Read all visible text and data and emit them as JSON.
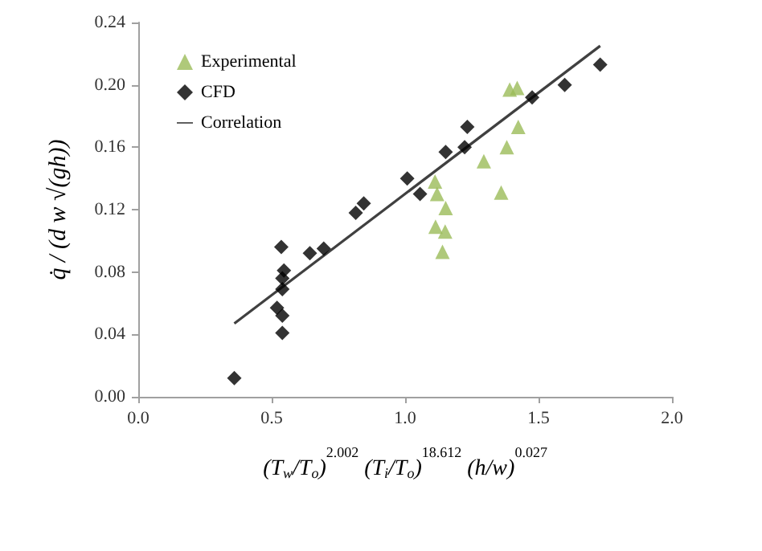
{
  "chart_data": {
    "type": "scatter",
    "xlabel": "(T$_{w}$/T$_{o}$)$^{2.002}$ (T$_{i}$/T$_{o}$)$^{18.612}$ (h/w)$^{0.027}$",
    "ylabel": "q̇ / (d w √(gh))",
    "xlim": [
      0,
      2
    ],
    "xticks": [
      {
        "value": 0,
        "label": "0.0"
      },
      {
        "value": 0.5,
        "label": "0.5"
      },
      {
        "value": 1,
        "label": "1.0"
      },
      {
        "value": 1.5,
        "label": "1.5"
      },
      {
        "value": 2,
        "label": "2.0"
      }
    ],
    "ylim": [
      0,
      0.24
    ],
    "yticks": [
      {
        "value": 0,
        "label": "0.00"
      },
      {
        "value": 0.04,
        "label": "0.04"
      },
      {
        "value": 0.08,
        "label": "0.08"
      },
      {
        "value": 0.12,
        "label": "0.12"
      },
      {
        "value": 0.16,
        "label": "0.16"
      },
      {
        "value": 0.2,
        "label": "0.20"
      },
      {
        "value": 0.24,
        "label": "0.24"
      }
    ],
    "grid": false,
    "legend": "top left",
    "series": [
      {
        "name": "Experimental",
        "marker": "triangle",
        "color": "#9bbb59",
        "x": [
          1.112,
          1.12,
          1.152,
          1.114,
          1.15,
          1.14,
          1.295,
          1.36,
          1.381,
          1.392,
          1.42,
          1.424
        ],
        "values": [
          0.138,
          0.13,
          0.121,
          0.109,
          0.106,
          0.093,
          0.151,
          0.131,
          0.16,
          0.197,
          0.198,
          0.173
        ]
      },
      {
        "name": "CFD",
        "marker": "diamond",
        "color": "#000000",
        "x": [
          0.36,
          0.536,
          0.546,
          0.54,
          0.54,
          0.52,
          0.54,
          0.54,
          0.643,
          0.695,
          0.815,
          0.845,
          1.008,
          1.056,
          1.152,
          1.223,
          1.233,
          1.476,
          1.598,
          1.731
        ],
        "values": [
          0.012,
          0.096,
          0.081,
          0.076,
          0.069,
          0.057,
          0.052,
          0.041,
          0.092,
          0.095,
          0.118,
          0.124,
          0.14,
          0.13,
          0.157,
          0.16,
          0.173,
          0.192,
          0.2,
          0.213
        ]
      },
      {
        "name": "Correlation",
        "type": "line",
        "marker": "none",
        "line_style": "solid",
        "color": "#404040",
        "x": [
          0.36,
          1.731
        ],
        "values": [
          0.047,
          0.225
        ]
      }
    ]
  }
}
